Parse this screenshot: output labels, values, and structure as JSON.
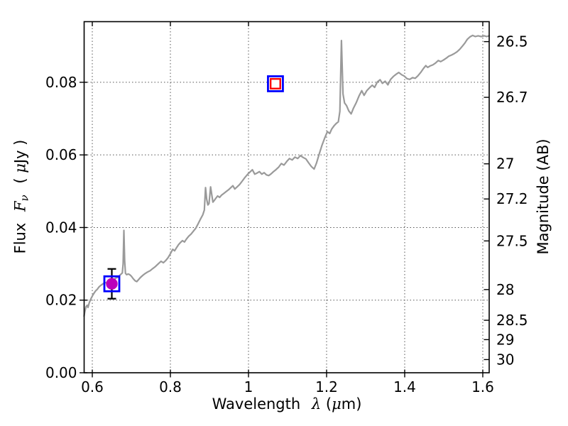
{
  "figure": {
    "background": "#ffffff",
    "spine_color": "#000000",
    "grid_style": "dotted",
    "grid_color": "#555555",
    "tick_label_color": "#000000"
  },
  "chart_data": {
    "type": "line",
    "title": "",
    "xlabel": {
      "prefix": "Wavelength",
      "symbol": "λ",
      "unit": "(",
      "unit_symbol": "μ",
      "unit_end": "m)"
    },
    "ylabel_left": {
      "prefix": "Flux",
      "symbol": "F",
      "subscript": "ν",
      "unit_open": "(",
      "unit_symbol": "μ",
      "unit_end": "Jy )"
    },
    "ylabel_right": "Magnitude (AB)",
    "xlim": [
      0.5791,
      1.6164
    ],
    "ylim_flux": [
      0,
      0.0967
    ],
    "x_ticks": [
      0.6,
      0.8,
      1.0,
      1.2,
      1.4,
      1.6
    ],
    "x_tick_labels": [
      "0.6",
      "0.8",
      "1",
      "1.2",
      "1.4",
      "1.6"
    ],
    "y_ticks_flux": [
      0.0,
      0.02,
      0.04,
      0.06,
      0.08
    ],
    "y_tick_labels_flux": [
      "0.00",
      "0.02",
      "0.04",
      "0.06",
      "0.08"
    ],
    "y_ticks_mag": [
      26.5,
      26.7,
      27,
      27.2,
      27.5,
      28,
      28.5,
      29,
      30
    ],
    "y_tick_labels_mag": [
      "26.5",
      "26.7",
      "27",
      "27.2",
      "27.5",
      "28",
      "28.5",
      "29",
      "30"
    ],
    "mag_zeropoint_ab_microjy": 23.9,
    "grid": true,
    "legend": false,
    "series": [
      {
        "name": "model-spectrum",
        "type": "line",
        "color": "#9a9a9a",
        "line_width": 2.2,
        "points": [
          [
            0.579,
            0.0156
          ],
          [
            0.581,
            0.0168
          ],
          [
            0.584,
            0.0182
          ],
          [
            0.587,
            0.0186
          ],
          [
            0.589,
            0.018
          ],
          [
            0.592,
            0.0192
          ],
          [
            0.595,
            0.02
          ],
          [
            0.598,
            0.0207
          ],
          [
            0.601,
            0.0213
          ],
          [
            0.605,
            0.022
          ],
          [
            0.609,
            0.0226
          ],
          [
            0.613,
            0.023
          ],
          [
            0.617,
            0.0236
          ],
          [
            0.621,
            0.024
          ],
          [
            0.625,
            0.0243
          ],
          [
            0.629,
            0.0246
          ],
          [
            0.633,
            0.0249
          ],
          [
            0.637,
            0.0247
          ],
          [
            0.641,
            0.0251
          ],
          [
            0.645,
            0.0253
          ],
          [
            0.649,
            0.0255
          ],
          [
            0.653,
            0.0257
          ],
          [
            0.657,
            0.0258
          ],
          [
            0.661,
            0.0261
          ],
          [
            0.665,
            0.0263
          ],
          [
            0.669,
            0.0267
          ],
          [
            0.673,
            0.0271
          ],
          [
            0.677,
            0.0275
          ],
          [
            0.679,
            0.03
          ],
          [
            0.681,
            0.0392
          ],
          [
            0.683,
            0.0308
          ],
          [
            0.685,
            0.0274
          ],
          [
            0.688,
            0.027
          ],
          [
            0.692,
            0.0272
          ],
          [
            0.696,
            0.027
          ],
          [
            0.7,
            0.0266
          ],
          [
            0.705,
            0.0259
          ],
          [
            0.71,
            0.0253
          ],
          [
            0.714,
            0.0251
          ],
          [
            0.718,
            0.0256
          ],
          [
            0.723,
            0.0262
          ],
          [
            0.729,
            0.0268
          ],
          [
            0.735,
            0.0273
          ],
          [
            0.741,
            0.0277
          ],
          [
            0.748,
            0.0281
          ],
          [
            0.755,
            0.0287
          ],
          [
            0.762,
            0.0293
          ],
          [
            0.769,
            0.03
          ],
          [
            0.776,
            0.0307
          ],
          [
            0.782,
            0.0303
          ],
          [
            0.788,
            0.0309
          ],
          [
            0.794,
            0.0317
          ],
          [
            0.8,
            0.0328
          ],
          [
            0.806,
            0.034
          ],
          [
            0.811,
            0.0336
          ],
          [
            0.816,
            0.0345
          ],
          [
            0.821,
            0.0353
          ],
          [
            0.826,
            0.0359
          ],
          [
            0.831,
            0.0364
          ],
          [
            0.836,
            0.036
          ],
          [
            0.841,
            0.0368
          ],
          [
            0.847,
            0.0376
          ],
          [
            0.853,
            0.0382
          ],
          [
            0.859,
            0.039
          ],
          [
            0.865,
            0.0398
          ],
          [
            0.871,
            0.041
          ],
          [
            0.877,
            0.0423
          ],
          [
            0.883,
            0.0435
          ],
          [
            0.887,
            0.0448
          ],
          [
            0.89,
            0.051
          ],
          [
            0.893,
            0.0478
          ],
          [
            0.896,
            0.0462
          ],
          [
            0.899,
            0.0466
          ],
          [
            0.903,
            0.0512
          ],
          [
            0.906,
            0.049
          ],
          [
            0.909,
            0.047
          ],
          [
            0.912,
            0.0474
          ],
          [
            0.916,
            0.048
          ],
          [
            0.921,
            0.0487
          ],
          [
            0.926,
            0.0483
          ],
          [
            0.931,
            0.0489
          ],
          [
            0.937,
            0.0494
          ],
          [
            0.943,
            0.0499
          ],
          [
            0.949,
            0.0504
          ],
          [
            0.955,
            0.051
          ],
          [
            0.96,
            0.0515
          ],
          [
            0.965,
            0.0506
          ],
          [
            0.971,
            0.0512
          ],
          [
            0.977,
            0.0518
          ],
          [
            0.984,
            0.0528
          ],
          [
            0.991,
            0.0538
          ],
          [
            0.998,
            0.0547
          ],
          [
            1.004,
            0.0553
          ],
          [
            1.01,
            0.0559
          ],
          [
            1.016,
            0.0547
          ],
          [
            1.022,
            0.055
          ],
          [
            1.028,
            0.0554
          ],
          [
            1.034,
            0.0547
          ],
          [
            1.04,
            0.0551
          ],
          [
            1.046,
            0.0545
          ],
          [
            1.052,
            0.0543
          ],
          [
            1.058,
            0.0548
          ],
          [
            1.064,
            0.0554
          ],
          [
            1.07,
            0.0559
          ],
          [
            1.077,
            0.0566
          ],
          [
            1.084,
            0.0576
          ],
          [
            1.091,
            0.0572
          ],
          [
            1.098,
            0.0582
          ],
          [
            1.105,
            0.059
          ],
          [
            1.112,
            0.0586
          ],
          [
            1.119,
            0.0594
          ],
          [
            1.126,
            0.059
          ],
          [
            1.133,
            0.0598
          ],
          [
            1.14,
            0.0593
          ],
          [
            1.147,
            0.0589
          ],
          [
            1.154,
            0.0578
          ],
          [
            1.161,
            0.0568
          ],
          [
            1.168,
            0.0561
          ],
          [
            1.174,
            0.0577
          ],
          [
            1.181,
            0.0602
          ],
          [
            1.188,
            0.0626
          ],
          [
            1.195,
            0.0646
          ],
          [
            1.202,
            0.0664
          ],
          [
            1.208,
            0.0659
          ],
          [
            1.213,
            0.0671
          ],
          [
            1.219,
            0.068
          ],
          [
            1.225,
            0.0687
          ],
          [
            1.23,
            0.0691
          ],
          [
            1.234,
            0.072
          ],
          [
            1.238,
            0.0915
          ],
          [
            1.242,
            0.0768
          ],
          [
            1.246,
            0.0743
          ],
          [
            1.251,
            0.0736
          ],
          [
            1.257,
            0.0721
          ],
          [
            1.263,
            0.0713
          ],
          [
            1.269,
            0.0729
          ],
          [
            1.276,
            0.0744
          ],
          [
            1.283,
            0.0762
          ],
          [
            1.29,
            0.0777
          ],
          [
            1.296,
            0.0764
          ],
          [
            1.303,
            0.0777
          ],
          [
            1.31,
            0.0785
          ],
          [
            1.317,
            0.0792
          ],
          [
            1.323,
            0.0786
          ],
          [
            1.33,
            0.0801
          ],
          [
            1.337,
            0.0807
          ],
          [
            1.343,
            0.0797
          ],
          [
            1.35,
            0.0803
          ],
          [
            1.357,
            0.0793
          ],
          [
            1.364,
            0.0808
          ],
          [
            1.371,
            0.0816
          ],
          [
            1.378,
            0.0822
          ],
          [
            1.385,
            0.0827
          ],
          [
            1.392,
            0.0821
          ],
          [
            1.399,
            0.0817
          ],
          [
            1.406,
            0.081
          ],
          [
            1.413,
            0.0808
          ],
          [
            1.42,
            0.0813
          ],
          [
            1.427,
            0.0811
          ],
          [
            1.434,
            0.0818
          ],
          [
            1.441,
            0.0827
          ],
          [
            1.448,
            0.0838
          ],
          [
            1.454,
            0.0846
          ],
          [
            1.459,
            0.0841
          ],
          [
            1.465,
            0.0845
          ],
          [
            1.472,
            0.0848
          ],
          [
            1.479,
            0.0853
          ],
          [
            1.486,
            0.086
          ],
          [
            1.492,
            0.0857
          ],
          [
            1.499,
            0.0861
          ],
          [
            1.506,
            0.0866
          ],
          [
            1.513,
            0.0872
          ],
          [
            1.52,
            0.0875
          ],
          [
            1.527,
            0.0879
          ],
          [
            1.534,
            0.0884
          ],
          [
            1.541,
            0.0891
          ],
          [
            1.548,
            0.09
          ],
          [
            1.554,
            0.0908
          ],
          [
            1.56,
            0.0918
          ],
          [
            1.567,
            0.0925
          ],
          [
            1.574,
            0.0929
          ],
          [
            1.581,
            0.0926
          ],
          [
            1.588,
            0.0928
          ],
          [
            1.596,
            0.0926
          ],
          [
            1.604,
            0.0928
          ],
          [
            1.61,
            0.0926
          ],
          [
            1.616,
            0.0928
          ]
        ]
      },
      {
        "name": "observed-photometry",
        "type": "scatter",
        "marker": "square-circle",
        "square_color": "#0000ff",
        "circle_fill": "#bb00bb",
        "errorbar_color": "#000000",
        "points": [
          {
            "x": 0.65,
            "y": 0.0245,
            "yerr": 0.0041
          }
        ]
      },
      {
        "name": "model-photometry",
        "type": "scatter",
        "marker": "square-square",
        "outer_color": "#0000ff",
        "inner_color": "#ff0000",
        "points": [
          {
            "x": 1.069,
            "y": 0.0796
          }
        ]
      }
    ]
  }
}
